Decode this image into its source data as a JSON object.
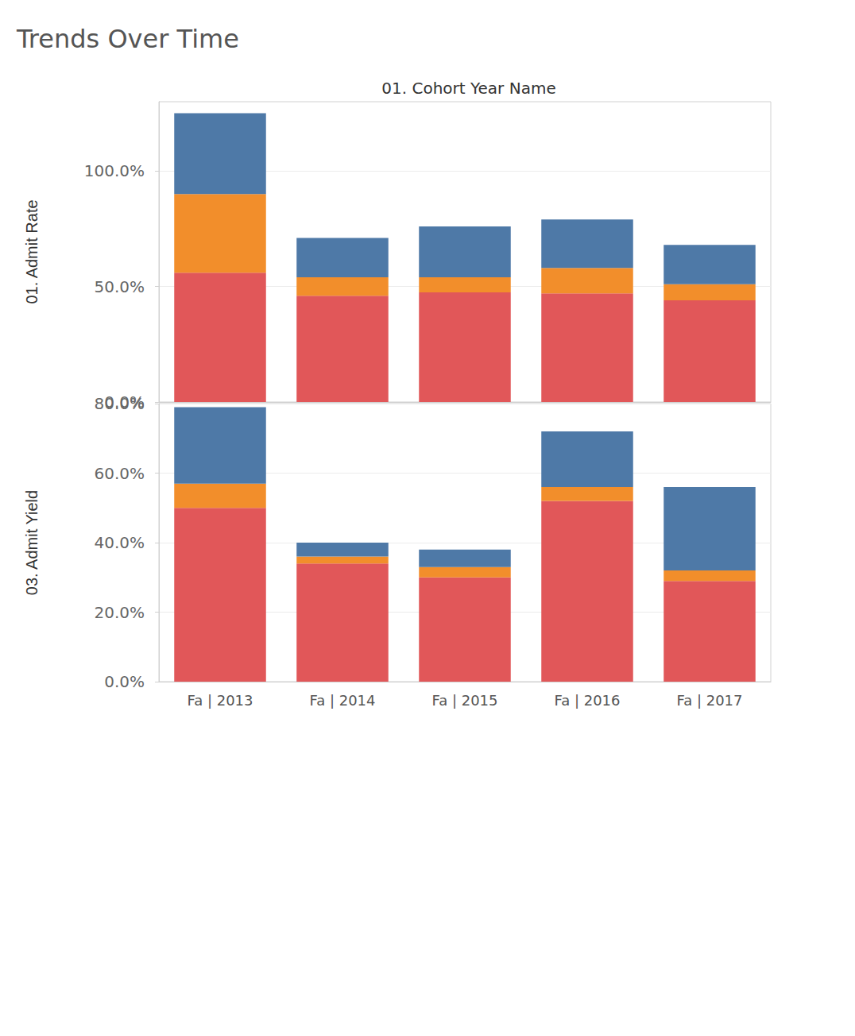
{
  "chart_data": [
    {
      "type": "bar",
      "title": "Trends Over Time",
      "xlabel": "01. Cohort Year Name",
      "ylabel": "01. Admit Rate",
      "stacked": true,
      "grid": true,
      "tick_labels": "y",
      "categories": [
        "Fa | 2013",
        "Fa | 2014",
        "Fa | 2015",
        "Fa | 2016",
        "Fa | 2017"
      ],
      "series": [
        {
          "color": "#e15759",
          "values": [
            56,
            46,
            47.5,
            47,
            44
          ]
        },
        {
          "color": "#f28e2b",
          "values": [
            34,
            8,
            6.5,
            11,
            7
          ]
        },
        {
          "color": "#4e79a7",
          "values": [
            35,
            17,
            22,
            21,
            17
          ]
        }
      ],
      "ylim": [
        0,
        130
      ],
      "yticks": [
        {
          "value": 0,
          "label": "0.0%"
        },
        {
          "value": 50,
          "label": "50.0%"
        },
        {
          "value": 100,
          "label": "100.0%"
        }
      ]
    },
    {
      "type": "bar",
      "ylabel": "03. Admit Yield",
      "stacked": true,
      "grid": true,
      "categories": [
        "Fa | 2013",
        "Fa | 2014",
        "Fa | 2015",
        "Fa | 2016",
        "Fa | 2017"
      ],
      "series": [
        {
          "color": "#e15759",
          "values": [
            50,
            34,
            30,
            52,
            29
          ]
        },
        {
          "color": "#f28e2b",
          "values": [
            7,
            2,
            3,
            4,
            3
          ]
        },
        {
          "color": "#4e79a7",
          "values": [
            22,
            4,
            5,
            16,
            24
          ]
        }
      ],
      "ylim": [
        0,
        80
      ],
      "yticks": [
        {
          "value": 0,
          "label": "0.0%"
        },
        {
          "value": 20,
          "label": "20.0%"
        },
        {
          "value": 40,
          "label": "40.0%"
        },
        {
          "value": 60,
          "label": "60.0%"
        },
        {
          "value": 80,
          "label": "80.0%"
        }
      ]
    }
  ]
}
